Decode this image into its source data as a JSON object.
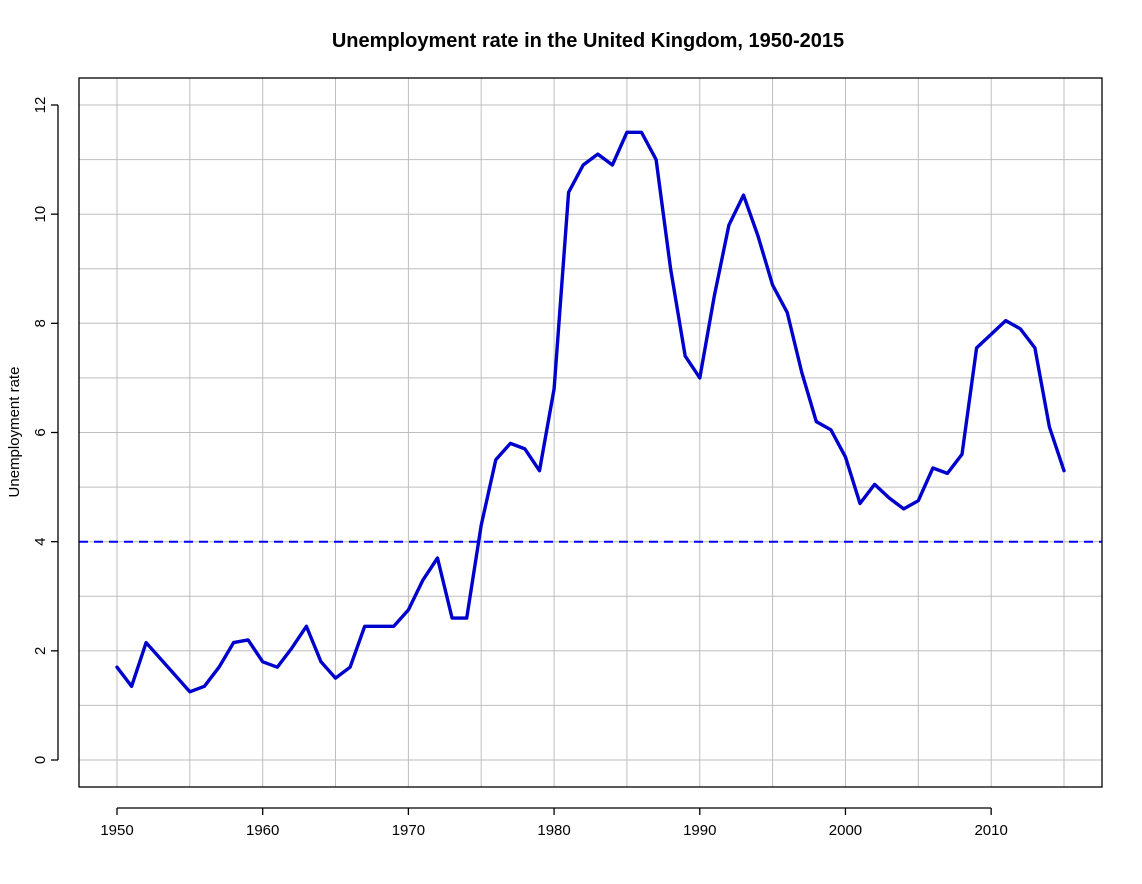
{
  "chart_data": {
    "type": "line",
    "title": "Unemployment rate in the United Kingdom, 1950-2015",
    "xlabel": "",
    "ylabel": "Unemployment rate",
    "xlim": [
      1950,
      2015
    ],
    "ylim": [
      0,
      12
    ],
    "x_ticks": [
      1950,
      1960,
      1970,
      1980,
      1990,
      2000,
      2010
    ],
    "y_ticks": [
      0,
      2,
      4,
      6,
      8,
      10,
      12
    ],
    "grid": true,
    "colors": {
      "line": "#0000cd",
      "reference": "#0000ff",
      "grid": "#bebebe",
      "axis": "#000000"
    },
    "series": [
      {
        "x": [
          1950,
          1951,
          1952,
          1953,
          1954,
          1955,
          1956,
          1957,
          1958,
          1959,
          1960,
          1961,
          1962,
          1963,
          1964,
          1965,
          1966,
          1967,
          1968,
          1969,
          1970,
          1971,
          1972,
          1973,
          1974,
          1975,
          1976,
          1977,
          1978,
          1979,
          1980,
          1981,
          1982,
          1983,
          1984,
          1985,
          1986,
          1987,
          1988,
          1989,
          1990,
          1991,
          1992,
          1993,
          1994,
          1995,
          1996,
          1997,
          1998,
          1999,
          2000,
          2001,
          2002,
          2003,
          2004,
          2005,
          2006,
          2007,
          2008,
          2009,
          2010,
          2011,
          2012,
          2013,
          2014,
          2015
        ],
        "values": [
          1.7,
          1.35,
          2.15,
          1.85,
          1.55,
          1.25,
          1.35,
          1.7,
          2.15,
          2.2,
          1.8,
          1.7,
          2.05,
          2.45,
          1.8,
          1.5,
          1.7,
          2.45,
          2.45,
          2.45,
          2.75,
          3.3,
          3.7,
          2.6,
          2.6,
          4.3,
          5.5,
          5.8,
          5.7,
          5.3,
          6.8,
          10.4,
          10.9,
          11.1,
          10.9,
          11.5,
          11.5,
          11.0,
          9.0,
          7.4,
          7.0,
          8.5,
          9.8,
          10.35,
          9.6,
          8.7,
          8.2,
          7.1,
          6.2,
          6.05,
          5.55,
          4.7,
          5.05,
          4.8,
          4.6,
          4.75,
          5.35,
          5.25,
          5.6,
          7.55,
          7.8,
          8.05,
          7.9,
          7.55,
          6.1,
          5.3
        ]
      }
    ],
    "reference_line": {
      "y": 4,
      "style": "dashed"
    }
  }
}
